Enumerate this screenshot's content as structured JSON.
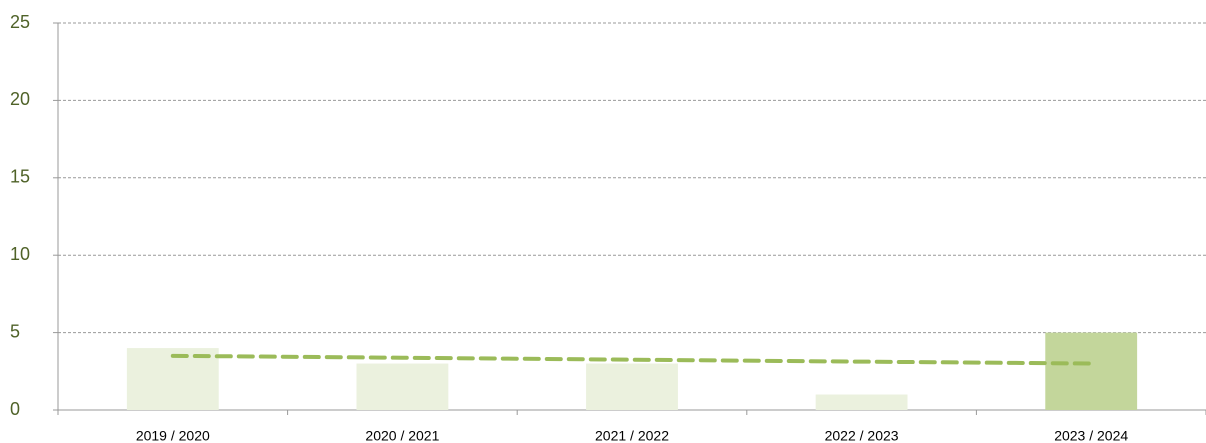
{
  "chart_data": {
    "type": "bar",
    "categories": [
      "2019 / 2020",
      "2020 / 2021",
      "2021 / 2022",
      "2022 / 2023",
      "2023 / 2024"
    ],
    "series": [
      {
        "type": "bar",
        "values": [
          4,
          3,
          3,
          1,
          5
        ],
        "colors": [
          "#ebf1de",
          "#ebf1de",
          "#ebf1de",
          "#ebf1de",
          "#c3d69b"
        ]
      },
      {
        "type": "line",
        "color": "#9bbb59",
        "values": [
          3.5,
          3.375,
          3.25,
          3.125,
          3.0
        ]
      }
    ],
    "ylim": [
      0,
      25
    ],
    "yticks": [
      0,
      5,
      10,
      15,
      20,
      25
    ],
    "grid": true
  }
}
